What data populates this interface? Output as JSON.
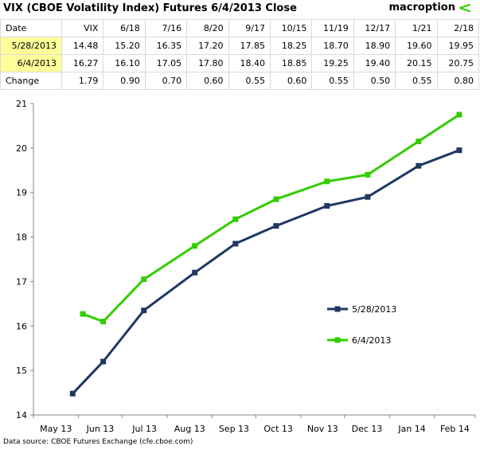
{
  "header": {
    "title": "VIX (CBOE Volatility Index) Futures 6/4/2013 Close",
    "brand": "macroption"
  },
  "table": {
    "columns": [
      "Date",
      "VIX",
      "6/18",
      "7/16",
      "8/20",
      "9/17",
      "10/15",
      "11/19",
      "12/17",
      "1/21",
      "2/18"
    ],
    "rows": [
      {
        "label": "5/28/2013",
        "values": [
          "14.48",
          "15.20",
          "16.35",
          "17.20",
          "17.85",
          "18.25",
          "18.70",
          "18.90",
          "19.60",
          "19.95"
        ]
      },
      {
        "label": "6/4/2013",
        "values": [
          "16.27",
          "16.10",
          "17.05",
          "17.80",
          "18.40",
          "18.85",
          "19.25",
          "19.40",
          "20.15",
          "20.75"
        ]
      },
      {
        "label": "Change",
        "values": [
          "1.79",
          "0.90",
          "0.70",
          "0.60",
          "0.55",
          "0.60",
          "0.55",
          "0.50",
          "0.55",
          "0.80"
        ]
      }
    ]
  },
  "colors": {
    "series_1": "#1f3864",
    "series_2": "#33cc00",
    "highlight": "#ffff99",
    "brand_arrow": "#33cc00"
  },
  "chart_data": {
    "type": "line",
    "title": "",
    "xlabel": "",
    "ylabel": "",
    "x_ticks": [
      "May 13",
      "Jun 13",
      "Jul 13",
      "Aug 13",
      "Sep 13",
      "Oct 13",
      "Nov 13",
      "Dec 13",
      "Jan 14",
      "Feb 14"
    ],
    "y_ticks": [
      "14",
      "15",
      "16",
      "17",
      "18",
      "19",
      "20",
      "21"
    ],
    "ylim": [
      14,
      21
    ],
    "grid": false,
    "legend_placement": "right",
    "series": [
      {
        "name": "5/28/2013",
        "x": [
          "2013-05-28",
          "2013-06-18",
          "2013-07-16",
          "2013-08-20",
          "2013-09-17",
          "2013-10-15",
          "2013-11-19",
          "2013-12-17",
          "2014-01-21",
          "2014-02-18"
        ],
        "y": [
          14.48,
          15.2,
          16.35,
          17.2,
          17.85,
          18.25,
          18.7,
          18.9,
          19.6,
          19.95
        ]
      },
      {
        "name": "6/4/2013",
        "x": [
          "2013-06-04",
          "2013-06-18",
          "2013-07-16",
          "2013-08-20",
          "2013-09-17",
          "2013-10-15",
          "2013-11-19",
          "2013-12-17",
          "2014-01-21",
          "2014-02-18"
        ],
        "y": [
          16.27,
          16.1,
          17.05,
          17.8,
          18.4,
          18.85,
          19.25,
          19.4,
          20.15,
          20.75
        ]
      }
    ]
  },
  "footer": {
    "source": "Data source: CBOE Futures Exchange (cfe.cboe.com)"
  }
}
